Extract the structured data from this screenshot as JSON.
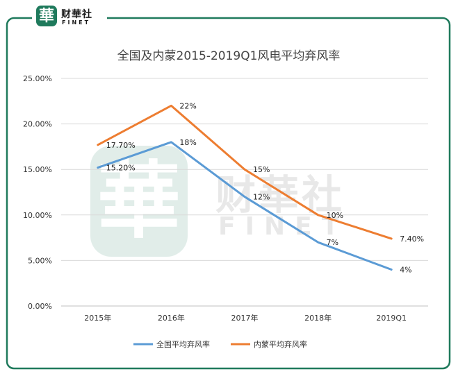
{
  "logo": {
    "cn": "财華社",
    "en": "FINET",
    "mark": "華"
  },
  "chart_data": {
    "type": "line",
    "title": "全国及内蒙2015-2019Q1风电平均弃风率",
    "categories": [
      "2015年",
      "2016年",
      "2017年",
      "2018年",
      "2019Q1"
    ],
    "ylim": [
      0,
      25
    ],
    "yticks": [
      "0.00%",
      "5.00%",
      "10.00%",
      "15.00%",
      "20.00%",
      "25.00%"
    ],
    "grid": true,
    "legend_position": "bottom",
    "series": [
      {
        "name": "全国平均弃风率",
        "color": "#5b9bd5",
        "values": [
          15.2,
          18,
          12,
          7,
          4
        ],
        "labels": [
          "15.20%",
          "18%",
          "12%",
          "7%",
          "4%"
        ]
      },
      {
        "name": "内蒙平均弃风率",
        "color": "#ed7d31",
        "values": [
          17.7,
          22,
          15,
          10,
          7.4
        ],
        "labels": [
          "17.70%",
          "22%",
          "15%",
          "10%",
          "7.40%"
        ]
      }
    ]
  }
}
